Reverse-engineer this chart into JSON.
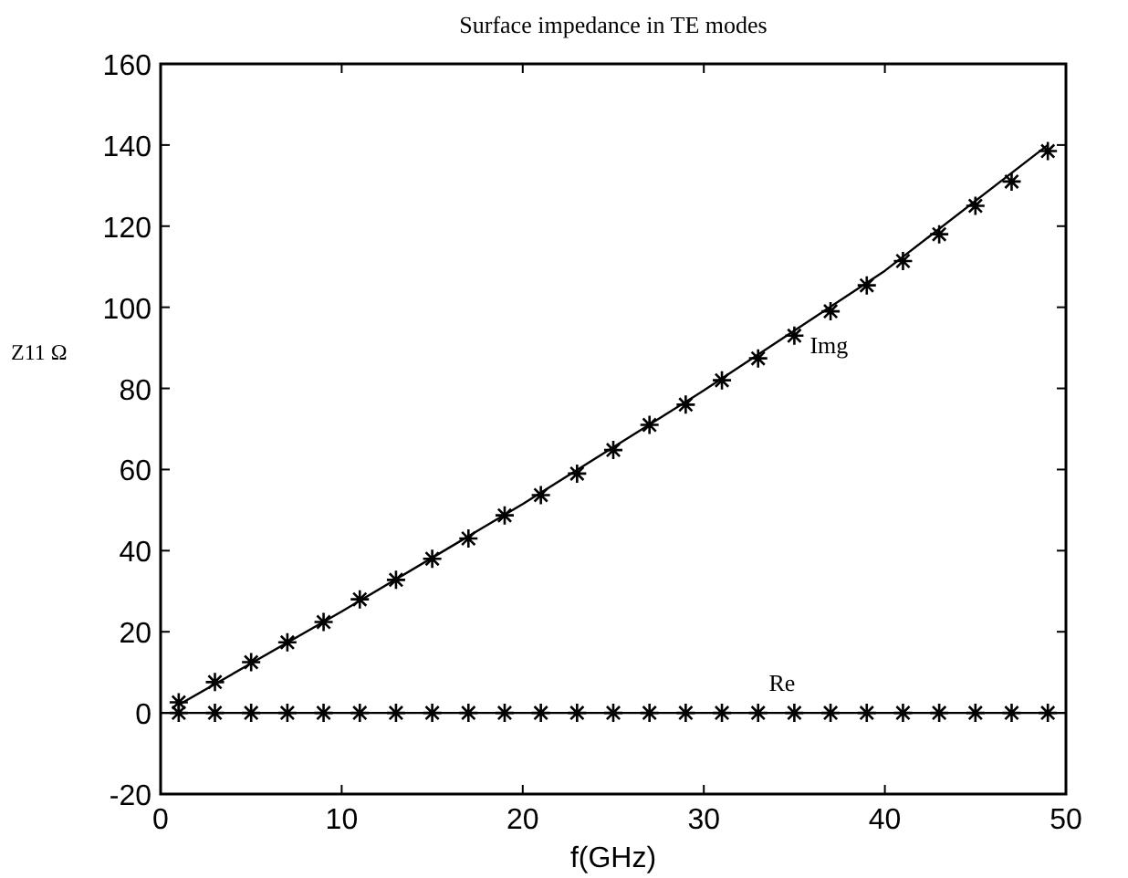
{
  "chart_data": {
    "type": "line",
    "title": "Surface impedance in TE modes",
    "xlabel": "f(GHz)",
    "ylabel": "Z11 Ω",
    "xlim": [
      0,
      50
    ],
    "ylim": [
      -20,
      160
    ],
    "xticks": [
      0,
      10,
      20,
      30,
      40,
      50
    ],
    "yticks": [
      -20,
      0,
      20,
      40,
      60,
      80,
      100,
      120,
      140,
      160
    ],
    "grid": false,
    "legend": false,
    "series": [
      {
        "type": "scatter",
        "marker": "cross",
        "color": "#000000",
        "x": [
          1,
          3,
          5,
          7,
          9,
          11,
          13,
          15,
          17,
          19,
          21,
          23,
          25,
          27,
          29,
          31,
          33,
          35,
          37,
          39,
          41,
          43,
          45,
          47,
          49
        ],
        "values": [
          2.6,
          7.6,
          12.5,
          17.4,
          22.4,
          28,
          32.8,
          38,
          43,
          48.7,
          53.7,
          59,
          64.8,
          71,
          76,
          82,
          87.4,
          93,
          99,
          105.4,
          111.4,
          118,
          125,
          131,
          138.5
        ]
      },
      {
        "type": "scatter",
        "marker": "cross",
        "color": "#000000",
        "x": [
          1,
          3,
          5,
          7,
          9,
          11,
          13,
          15,
          17,
          19,
          21,
          23,
          25,
          27,
          29,
          31,
          33,
          35,
          37,
          39,
          41,
          43,
          45,
          47,
          49
        ],
        "values": [
          0,
          0,
          0,
          0,
          0,
          0,
          0,
          0,
          0,
          0,
          0,
          0,
          0,
          0,
          0,
          0,
          0,
          0,
          0,
          0,
          0,
          0,
          0,
          0,
          0
        ]
      },
      {
        "name": "Img",
        "marker": "none",
        "line_style": "solid",
        "color": "#000000",
        "x": [
          1,
          10,
          20,
          30,
          40,
          49
        ],
        "values": [
          2,
          25,
          51.5,
          79.5,
          109,
          140
        ]
      },
      {
        "name": "Re",
        "marker": "none",
        "line_style": "solid",
        "color": "#000000",
        "x": [
          0,
          50
        ],
        "values": [
          0,
          0
        ]
      }
    ]
  }
}
